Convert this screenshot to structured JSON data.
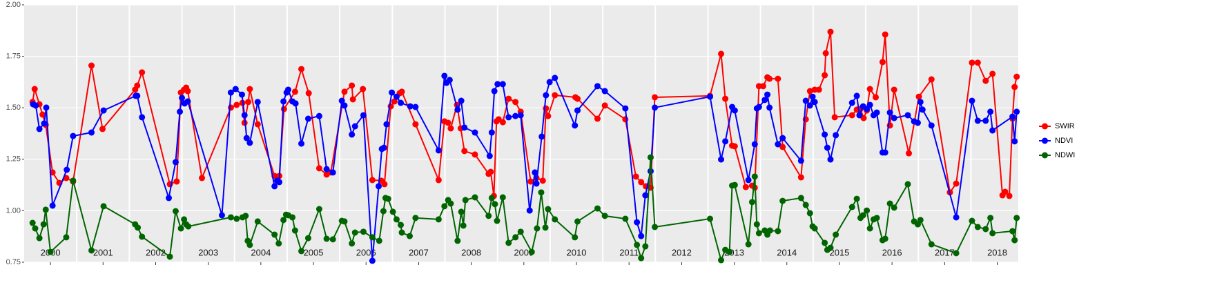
{
  "chart_data": {
    "type": "line",
    "xlim": [
      2000,
      2018.9
    ],
    "ylim": [
      0.75,
      2.0
    ],
    "xticks": [
      2000,
      2001,
      2002,
      2003,
      2004,
      2005,
      2006,
      2007,
      2008,
      2009,
      2010,
      2011,
      2012,
      2013,
      2014,
      2015,
      2016,
      2017,
      2018
    ],
    "yticks": [
      0.75,
      {
        "value": 1.0,
        "label": "1.00"
      },
      1.25,
      {
        "value": 1.5,
        "label": "1.50"
      },
      1.75,
      {
        "value": 2.0,
        "label": "2.00"
      }
    ],
    "grid": true,
    "legend": "right",
    "series": [
      {
        "name": "SWIR",
        "color": "#ff0000",
        "x": [
          2000.16,
          2000.2,
          2000.29,
          2000.35,
          2000.41,
          2000.54,
          2000.67,
          2000.8,
          2000.93,
          2001.28,
          2001.49,
          2002.11,
          2002.15,
          2002.24,
          2002.77,
          2002.9,
          2002.98,
          2003.04,
          2003.08,
          2003.11,
          2003.38,
          2003.93,
          2004.04,
          2004.15,
          2004.19,
          2004.26,
          2004.29,
          2004.44,
          2004.76,
          2004.85,
          2004.94,
          2005.15,
          2005.27,
          2005.41,
          2005.61,
          2005.75,
          2005.83,
          2006.09,
          2006.23,
          2006.25,
          2006.44,
          2006.62,
          2006.79,
          2006.85,
          2006.97,
          2007.04,
          2007.14,
          2007.18,
          2007.44,
          2007.88,
          2007.99,
          2008.06,
          2008.11,
          2008.23,
          2008.3,
          2008.37,
          2008.57,
          2008.83,
          2008.87,
          2008.93,
          2008.98,
          2009.02,
          2009.1,
          2009.21,
          2009.34,
          2009.44,
          2009.63,
          2009.74,
          2009.86,
          2009.92,
          2009.96,
          2010.09,
          2010.48,
          2010.52,
          2010.9,
          2011.04,
          2011.43,
          2011.63,
          2011.73,
          2011.82,
          2011.91,
          2011.99,
          2013.04,
          2013.25,
          2013.33,
          2013.46,
          2013.51,
          2013.72,
          2013.84,
          2013.89,
          2013.97,
          2014.05,
          2014.13,
          2014.17,
          2014.33,
          2014.42,
          2014.77,
          2014.86,
          2014.94,
          2015.03,
          2015.11,
          2015.22,
          2015.24,
          2015.33,
          2015.41,
          2015.74,
          2015.83,
          2015.9,
          2015.96,
          2016.02,
          2016.08,
          2016.19,
          2016.32,
          2016.37,
          2016.46,
          2016.54,
          2016.82,
          2017.01,
          2017.25,
          2017.6,
          2017.72,
          2018.02,
          2018.13,
          2018.28,
          2018.41,
          2018.6,
          2018.65,
          2018.73,
          2018.79,
          2018.83,
          2018.87
        ],
        "values": [
          1.528,
          1.591,
          1.517,
          1.467,
          1.417,
          1.186,
          1.135,
          1.159,
          1.142,
          1.705,
          1.397,
          1.588,
          1.608,
          1.672,
          1.129,
          1.142,
          1.574,
          1.588,
          1.598,
          1.581,
          1.159,
          1.501,
          1.514,
          1.524,
          1.427,
          1.528,
          1.591,
          1.42,
          1.169,
          1.169,
          1.494,
          1.578,
          1.688,
          1.571,
          1.206,
          1.176,
          1.186,
          1.578,
          1.608,
          1.541,
          1.591,
          1.149,
          1.146,
          1.129,
          1.507,
          1.531,
          1.571,
          1.578,
          1.42,
          1.149,
          1.434,
          1.427,
          1.4,
          1.514,
          1.4,
          1.29,
          1.273,
          1.179,
          1.189,
          1.072,
          1.434,
          1.444,
          1.43,
          1.544,
          1.528,
          1.481,
          1.142,
          1.159,
          1.146,
          1.497,
          1.46,
          1.561,
          1.551,
          1.544,
          1.447,
          1.511,
          1.444,
          1.166,
          1.139,
          1.119,
          1.112,
          1.551,
          1.558,
          1.762,
          1.544,
          1.316,
          1.313,
          1.115,
          1.122,
          1.112,
          1.605,
          1.605,
          1.648,
          1.641,
          1.641,
          1.31,
          1.162,
          1.444,
          1.581,
          1.588,
          1.588,
          1.658,
          1.765,
          1.869,
          1.454,
          1.464,
          1.491,
          1.494,
          1.45,
          1.487,
          1.591,
          1.551,
          1.722,
          1.856,
          1.414,
          1.588,
          1.279,
          1.554,
          1.638,
          1.089,
          1.132,
          1.719,
          1.719,
          1.631,
          1.665,
          1.075,
          1.092,
          1.072,
          1.447,
          1.601,
          1.651
        ]
      },
      {
        "name": "NDVI",
        "color": "#0000ff",
        "x": [
          2000.17,
          2000.22,
          2000.29,
          2000.38,
          2000.42,
          2000.54,
          2000.81,
          2000.93,
          2001.28,
          2001.51,
          2002.12,
          2002.15,
          2002.24,
          2002.75,
          2002.88,
          2002.96,
          2003.0,
          2003.05,
          2003.11,
          2003.76,
          2003.93,
          2004.02,
          2004.14,
          2004.19,
          2004.23,
          2004.29,
          2004.44,
          2004.76,
          2004.81,
          2004.85,
          2004.93,
          2004.99,
          2005.02,
          2005.1,
          2005.16,
          2005.27,
          2005.4,
          2005.61,
          2005.75,
          2005.87,
          2006.04,
          2006.09,
          2006.23,
          2006.29,
          2006.45,
          2006.62,
          2006.74,
          2006.8,
          2006.84,
          2006.89,
          2006.99,
          2007.08,
          2007.16,
          2007.34,
          2007.44,
          2007.88,
          2007.99,
          2008.03,
          2008.09,
          2008.24,
          2008.31,
          2008.37,
          2008.57,
          2008.85,
          2008.89,
          2008.94,
          2009.0,
          2009.1,
          2009.21,
          2009.34,
          2009.44,
          2009.61,
          2009.71,
          2009.74,
          2009.84,
          2009.92,
          2009.99,
          2010.09,
          2010.47,
          2010.52,
          2010.9,
          2011.04,
          2011.43,
          2011.65,
          2011.73,
          2011.81,
          2011.91,
          2011.99,
          2013.04,
          2013.25,
          2013.33,
          2013.46,
          2013.51,
          2013.77,
          2013.89,
          2013.93,
          2013.97,
          2014.08,
          2014.13,
          2014.17,
          2014.33,
          2014.42,
          2014.77,
          2014.86,
          2014.94,
          2014.99,
          2015.03,
          2015.22,
          2015.27,
          2015.33,
          2015.43,
          2015.74,
          2015.83,
          2015.88,
          2015.95,
          2016.02,
          2016.08,
          2016.15,
          2016.21,
          2016.32,
          2016.37,
          2016.46,
          2016.54,
          2016.8,
          2016.92,
          2016.99,
          2017.04,
          2017.08,
          2017.25,
          2017.72,
          2018.02,
          2018.13,
          2018.28,
          2018.37,
          2018.41,
          2018.79,
          2018.83,
          2018.87
        ],
        "values": [
          1.517,
          1.511,
          1.397,
          1.424,
          1.501,
          1.025,
          1.199,
          1.363,
          1.38,
          1.487,
          1.558,
          1.558,
          1.454,
          1.062,
          1.236,
          1.481,
          1.548,
          1.521,
          1.531,
          0.978,
          1.574,
          1.591,
          1.564,
          1.464,
          1.353,
          1.33,
          1.528,
          1.119,
          1.146,
          1.139,
          1.531,
          1.574,
          1.588,
          1.531,
          1.521,
          1.326,
          1.447,
          1.46,
          1.202,
          1.186,
          1.534,
          1.511,
          1.37,
          1.41,
          1.464,
          0.757,
          1.119,
          1.3,
          1.306,
          1.42,
          1.574,
          1.554,
          1.524,
          1.507,
          1.504,
          1.293,
          1.655,
          1.621,
          1.635,
          1.491,
          1.534,
          1.404,
          1.38,
          1.266,
          1.38,
          1.581,
          1.615,
          1.615,
          1.454,
          1.46,
          1.464,
          1.001,
          1.186,
          1.132,
          1.36,
          1.561,
          1.625,
          1.645,
          1.414,
          1.487,
          1.605,
          1.581,
          1.497,
          0.944,
          0.877,
          1.075,
          1.192,
          1.501,
          1.554,
          1.249,
          1.337,
          1.504,
          1.487,
          1.149,
          1.323,
          1.497,
          1.504,
          1.538,
          1.564,
          1.501,
          1.323,
          1.353,
          1.243,
          1.534,
          1.511,
          1.554,
          1.528,
          1.37,
          1.306,
          1.249,
          1.367,
          1.524,
          1.558,
          1.464,
          1.507,
          1.494,
          1.514,
          1.464,
          1.477,
          1.283,
          1.283,
          1.477,
          1.45,
          1.464,
          1.434,
          1.427,
          1.528,
          1.491,
          1.414,
          0.968,
          1.534,
          1.437,
          1.437,
          1.481,
          1.39,
          1.457,
          1.337,
          1.481
        ]
      },
      {
        "name": "NDWI",
        "color": "#006400",
        "x": [
          2000.16,
          2000.21,
          2000.29,
          2000.37,
          2000.41,
          2000.5,
          2000.8,
          2000.93,
          2001.28,
          2001.51,
          2002.11,
          2002.16,
          2002.24,
          2002.77,
          2002.88,
          2002.98,
          2003.04,
          2003.08,
          2003.12,
          2003.93,
          2004.04,
          2004.15,
          2004.21,
          2004.25,
          2004.29,
          2004.44,
          2004.76,
          2004.84,
          2004.93,
          2004.98,
          2005.02,
          2005.1,
          2005.15,
          2005.27,
          2005.4,
          2005.61,
          2005.75,
          2005.87,
          2006.04,
          2006.09,
          2006.23,
          2006.29,
          2006.45,
          2006.62,
          2006.75,
          2006.83,
          2006.87,
          2006.92,
          2007.01,
          2007.08,
          2007.16,
          2007.18,
          2007.33,
          2007.44,
          2007.88,
          2007.99,
          2008.06,
          2008.11,
          2008.24,
          2008.31,
          2008.35,
          2008.39,
          2008.57,
          2008.83,
          2008.89,
          2008.95,
          2008.99,
          2009.1,
          2009.21,
          2009.34,
          2009.44,
          2009.65,
          2009.75,
          2009.83,
          2009.91,
          2009.96,
          2010.09,
          2010.47,
          2010.52,
          2010.9,
          2011.04,
          2011.43,
          2011.65,
          2011.73,
          2011.81,
          2011.91,
          2011.99,
          2013.04,
          2013.25,
          2013.33,
          2013.41,
          2013.46,
          2013.51,
          2013.77,
          2013.84,
          2013.89,
          2013.93,
          2013.97,
          2014.08,
          2014.13,
          2014.18,
          2014.33,
          2014.42,
          2014.77,
          2014.86,
          2014.94,
          2014.99,
          2015.03,
          2015.22,
          2015.27,
          2015.33,
          2015.43,
          2015.74,
          2015.83,
          2015.9,
          2015.95,
          2016.02,
          2016.08,
          2016.15,
          2016.21,
          2016.32,
          2016.37,
          2016.46,
          2016.54,
          2016.8,
          2016.92,
          2016.99,
          2017.04,
          2017.25,
          2017.72,
          2018.02,
          2018.13,
          2018.28,
          2018.37,
          2018.41,
          2018.79,
          2018.83,
          2018.87
        ],
        "values": [
          0.941,
          0.914,
          0.867,
          0.934,
          1.005,
          0.8,
          0.871,
          1.146,
          0.807,
          1.022,
          0.934,
          0.918,
          0.874,
          0.777,
          0.998,
          0.914,
          0.958,
          0.934,
          0.924,
          0.968,
          0.961,
          0.968,
          0.975,
          0.854,
          0.834,
          0.948,
          0.884,
          0.841,
          0.955,
          0.981,
          0.978,
          0.968,
          0.904,
          0.804,
          0.867,
          1.008,
          0.864,
          0.861,
          0.951,
          0.948,
          0.841,
          0.894,
          0.898,
          0.871,
          0.854,
          0.998,
          1.062,
          1.058,
          0.995,
          0.958,
          0.931,
          0.894,
          0.877,
          0.965,
          0.958,
          1.022,
          1.052,
          1.035,
          0.854,
          0.995,
          0.928,
          1.052,
          1.065,
          0.975,
          1.062,
          1.032,
          0.951,
          1.065,
          0.844,
          0.871,
          0.898,
          0.8,
          0.914,
          1.089,
          0.918,
          1.008,
          0.958,
          0.871,
          0.948,
          1.011,
          0.975,
          0.961,
          0.834,
          0.77,
          0.827,
          1.259,
          0.921,
          0.961,
          0.76,
          0.81,
          0.8,
          1.122,
          1.125,
          0.837,
          1.042,
          1.166,
          0.934,
          0.891,
          0.904,
          0.884,
          0.904,
          0.901,
          1.048,
          1.062,
          1.028,
          0.988,
          0.924,
          0.914,
          0.844,
          0.81,
          0.82,
          0.884,
          1.018,
          1.058,
          0.965,
          0.978,
          1.001,
          0.914,
          0.958,
          0.965,
          0.857,
          0.864,
          1.035,
          1.015,
          1.129,
          0.948,
          0.934,
          0.955,
          0.837,
          0.794,
          0.951,
          0.921,
          0.911,
          0.965,
          0.891,
          0.901,
          0.857,
          0.965
        ]
      }
    ]
  }
}
